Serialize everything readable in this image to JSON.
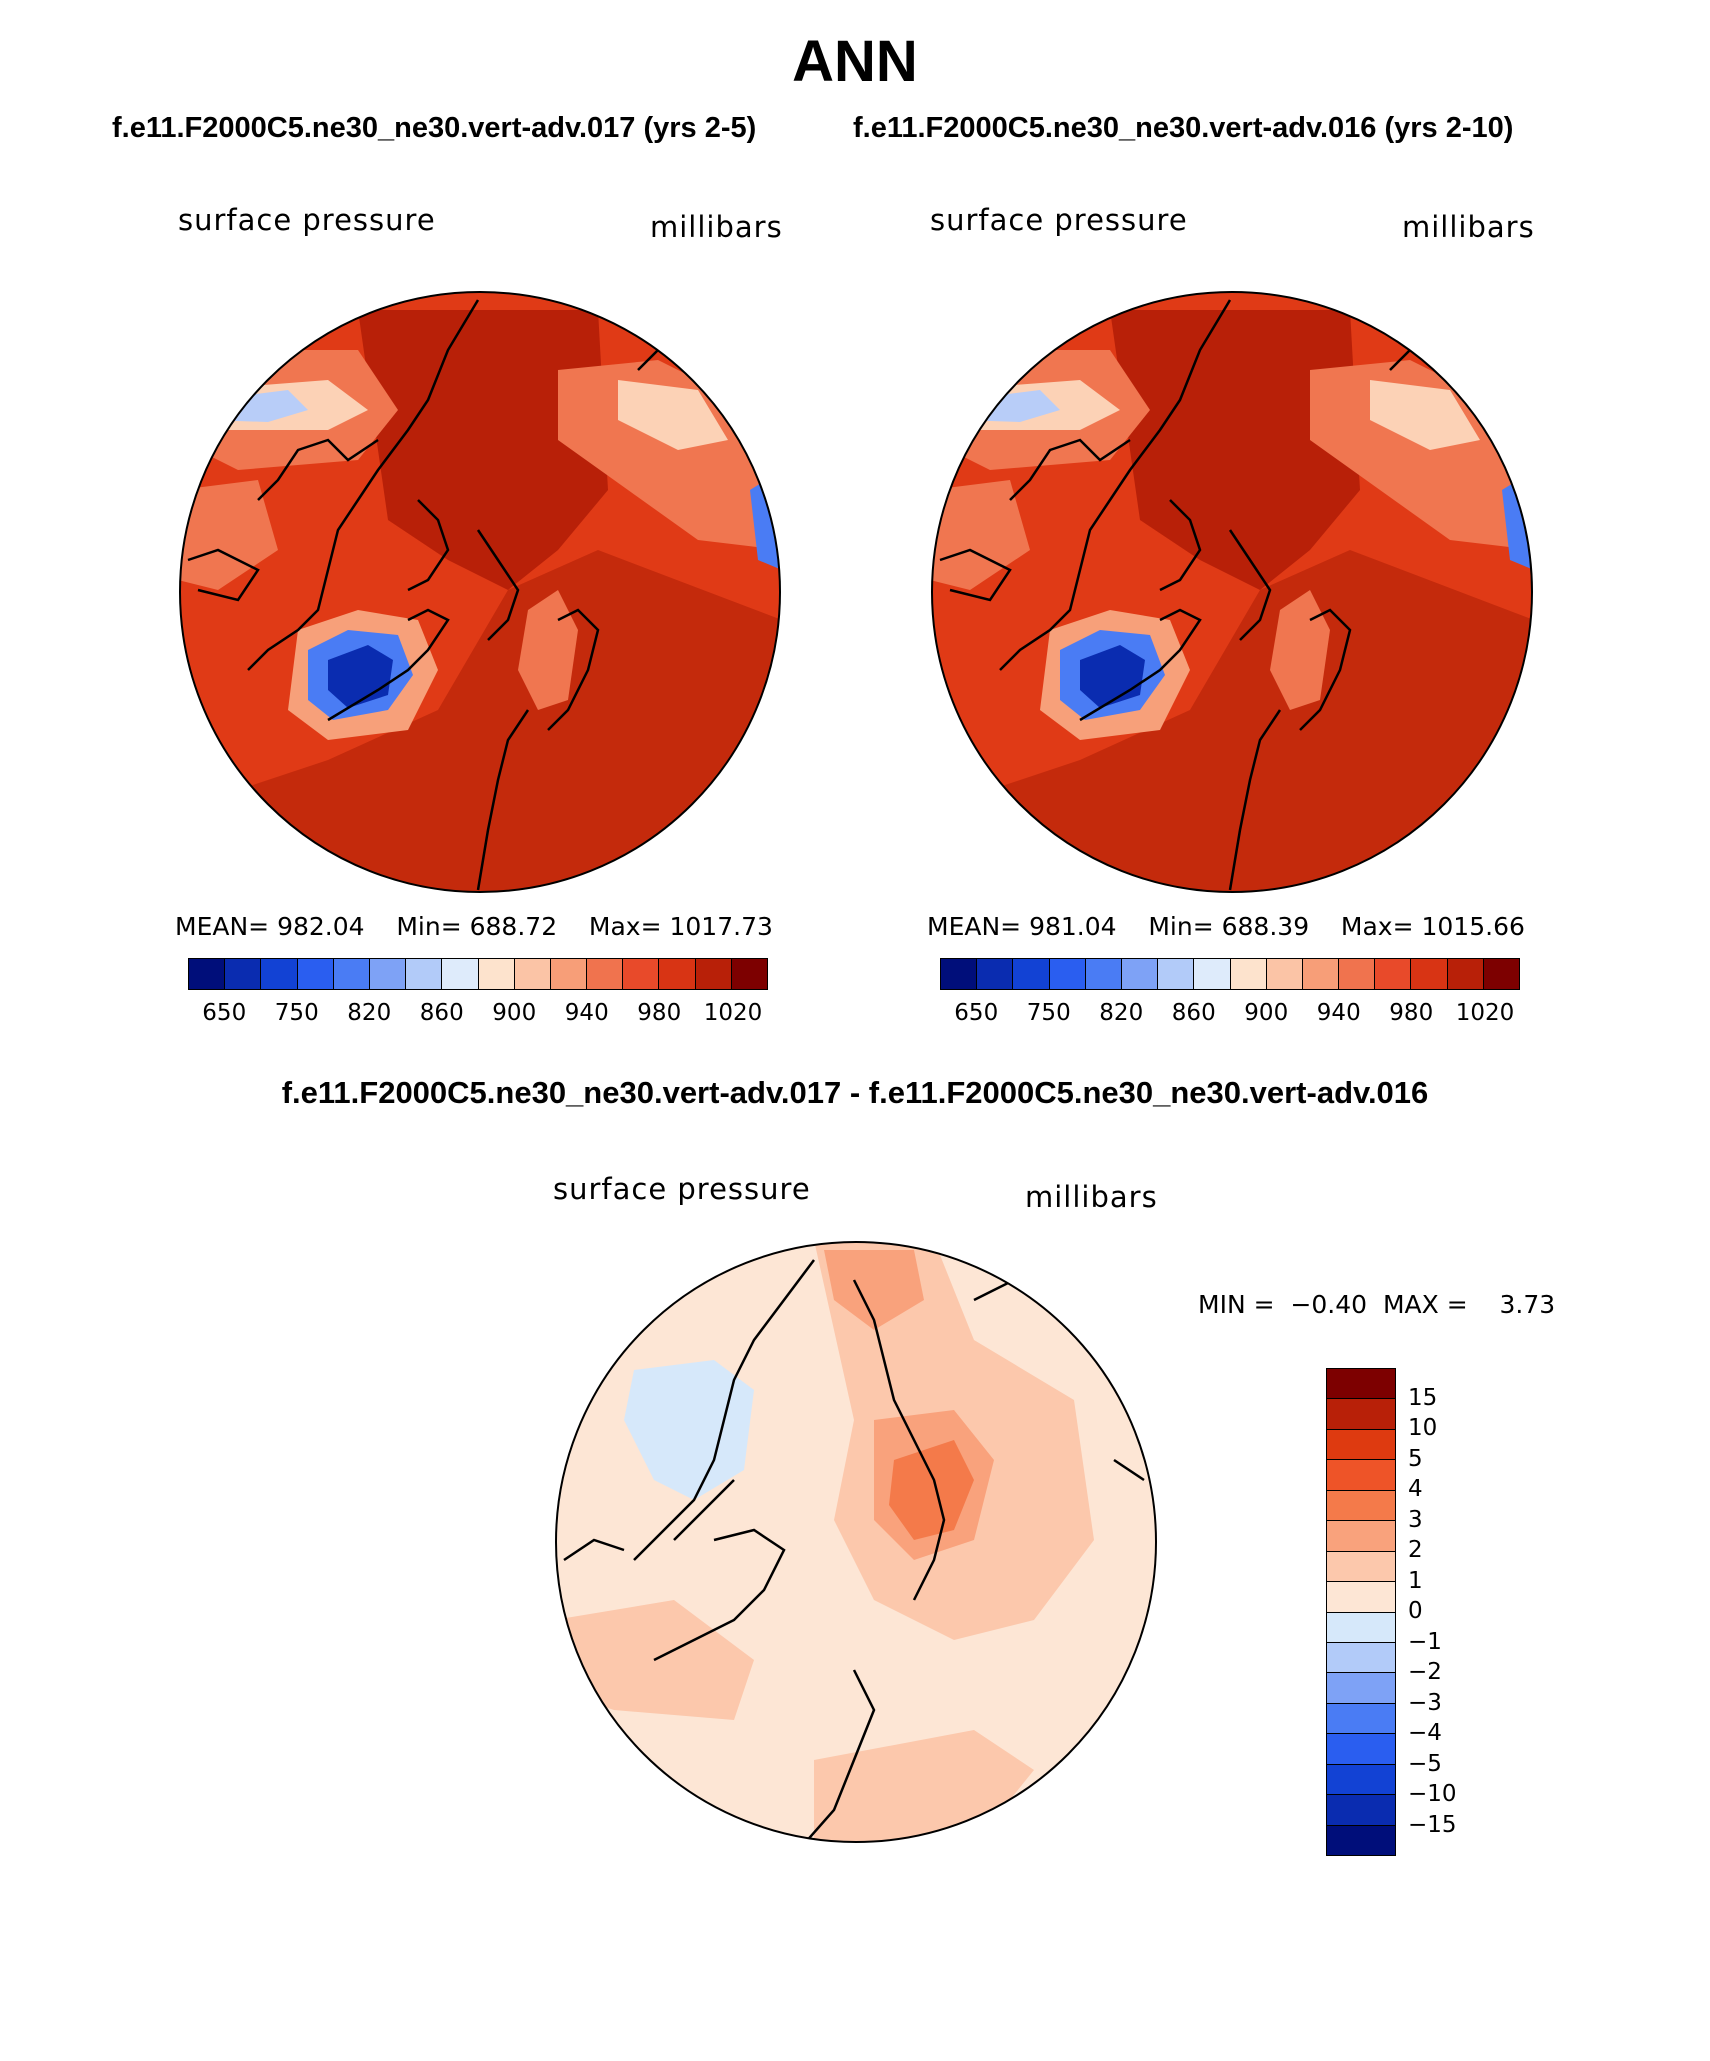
{
  "title": "ANN",
  "case_left": "f.e11.F2000C5.ne30_ne30.vert-adv.017 (yrs 2-5)",
  "case_right": "f.e11.F2000C5.ne30_ne30.vert-adv.016 (yrs 2-10)",
  "diff_title": "f.e11.F2000C5.ne30_ne30.vert-adv.017 - f.e11.F2000C5.ne30_ne30.vert-adv.016",
  "colors": {
    "abs_levels": [
      "#000e7a",
      "#0a2cb0",
      "#1242d4",
      "#2a5ef0",
      "#4a7cf4",
      "#7ea2f6",
      "#b2cbf9",
      "#deebfb",
      "#fde3cd",
      "#fbc4a6",
      "#f79e78",
      "#f0734e",
      "#e84a2a",
      "#d83414",
      "#b82008",
      "#7d0000"
    ],
    "diff_levels": [
      "#7d0000",
      "#b82008",
      "#de3a10",
      "#ee5428",
      "#f47a4a",
      "#f9a27c",
      "#fcc8ac",
      "#fde6d5",
      "#d6e8fa",
      "#b2cbf9",
      "#7ea2f6",
      "#4a7cf4",
      "#2a5ef0",
      "#1242d4",
      "#0a2cb0",
      "#000e7a"
    ]
  },
  "panels": [
    {
      "variable": "surface pressure",
      "units": "millibars",
      "mean_label": "MEAN=",
      "mean": "982.04",
      "min_label": "Min=",
      "min": "688.72",
      "max_label": "Max=",
      "max": "1017.73",
      "ticks": [
        "650",
        "750",
        "820",
        "860",
        "900",
        "940",
        "980",
        "1020"
      ]
    },
    {
      "variable": "surface pressure",
      "units": "millibars",
      "mean_label": "MEAN=",
      "mean": "981.04",
      "min_label": "Min=",
      "min": "688.39",
      "max_label": "Max=",
      "max": "1015.66",
      "ticks": [
        "650",
        "750",
        "820",
        "860",
        "900",
        "940",
        "980",
        "1020"
      ]
    }
  ],
  "diff_panel": {
    "variable": "surface pressure",
    "units": "millibars",
    "min_label": "MIN =",
    "min": "−0.40",
    "max_label": "MAX =",
    "max": "3.73",
    "ticks": [
      "15",
      "10",
      "5",
      "4",
      "3",
      "2",
      "1",
      "0",
      "−1",
      "−2",
      "−3",
      "−4",
      "−5",
      "−10",
      "−15"
    ]
  },
  "chart_data": [
    {
      "type": "heatmap",
      "title": "surface pressure",
      "units": "millibars",
      "projection": "north polar stereographic",
      "case": "f.e11.F2000C5.ne30_ne30.vert-adv.017 (yrs 2-5)",
      "stats": {
        "mean": 982.04,
        "min": 688.72,
        "max": 1017.73
      },
      "contour_levels": [
        650,
        700,
        750,
        800,
        820,
        840,
        860,
        880,
        900,
        920,
        940,
        960,
        980,
        1000,
        1020
      ]
    },
    {
      "type": "heatmap",
      "title": "surface pressure",
      "units": "millibars",
      "projection": "north polar stereographic",
      "case": "f.e11.F2000C5.ne30_ne30.vert-adv.016 (yrs 2-10)",
      "stats": {
        "mean": 981.04,
        "min": 688.39,
        "max": 1015.66
      },
      "contour_levels": [
        650,
        700,
        750,
        800,
        820,
        840,
        860,
        880,
        900,
        920,
        940,
        960,
        980,
        1000,
        1020
      ]
    },
    {
      "type": "heatmap",
      "title": "surface pressure",
      "units": "millibars",
      "projection": "north polar stereographic",
      "case": "difference 017 - 016",
      "stats": {
        "min": -0.4,
        "max": 3.73
      },
      "contour_levels": [
        -15,
        -10,
        -5,
        -4,
        -3,
        -2,
        -1,
        0,
        1,
        2,
        3,
        4,
        5,
        10,
        15
      ]
    }
  ]
}
